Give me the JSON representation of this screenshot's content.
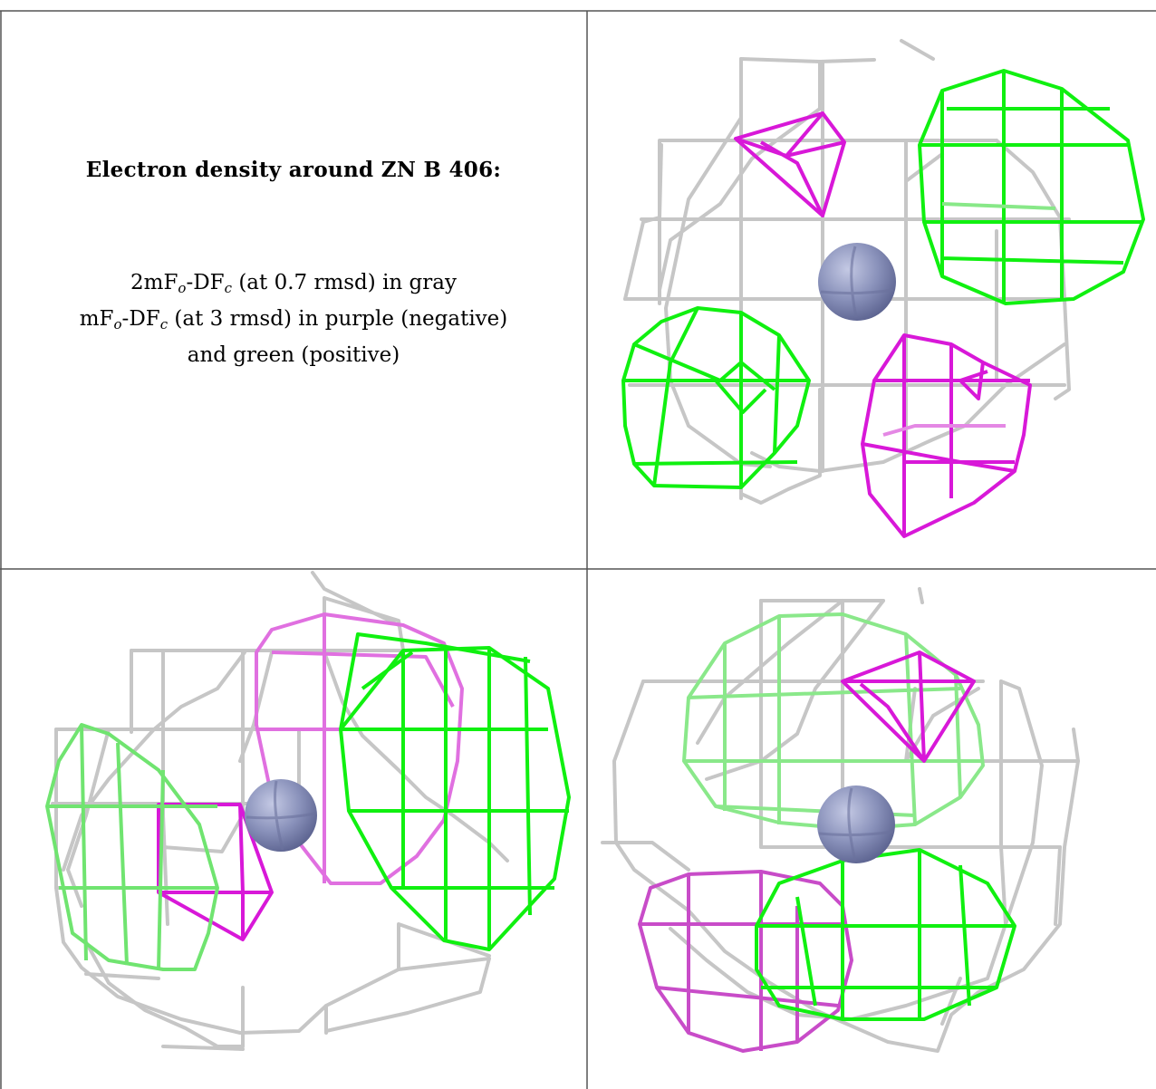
{
  "caption": {
    "title": "Electron density around ZN B 406:",
    "line1": {
      "pre": "2mF",
      "sub1": "o",
      "mid": "-DF",
      "sub2": "c",
      "post": " (at 0.7 rmsd) in gray"
    },
    "line2": {
      "pre": "mF",
      "sub1": "o",
      "mid": "-DF",
      "sub2": "c",
      "post": " (at 3 rmsd) in purple (negative)"
    },
    "line3": "and green (positive)"
  },
  "colors": {
    "gray_mesh": "#c8c8c8",
    "gray_dark": "#707070",
    "purple_mesh": "#e000e0",
    "green_mesh": "#00f000",
    "zinc_atom": "#8890b8",
    "grid_line": "#555555"
  },
  "panels": [
    {
      "view": "top-right",
      "atom": "ZN B 406"
    },
    {
      "view": "bottom-left",
      "atom": "ZN B 406"
    },
    {
      "view": "bottom-right",
      "atom": "ZN B 406"
    }
  ]
}
